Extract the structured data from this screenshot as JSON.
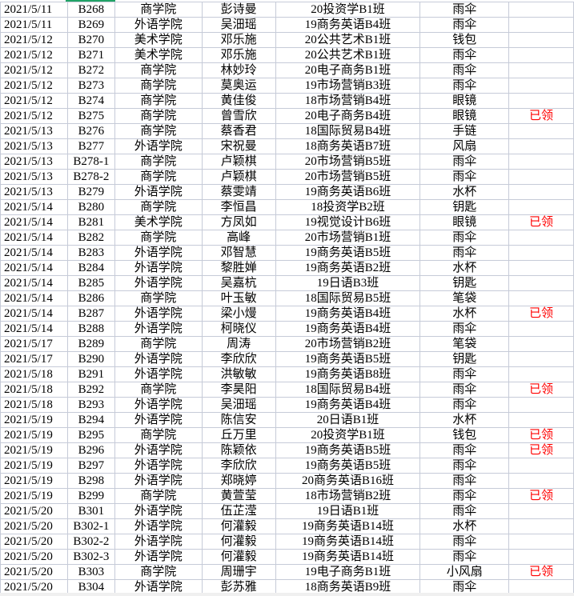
{
  "accent_color": "#21a366",
  "status_color": "#ff0000",
  "rows": [
    [
      "2021/5/11",
      "B268",
      "商学院",
      "彭诗曼",
      "20投资学B1班",
      "雨伞",
      ""
    ],
    [
      "2021/5/11",
      "B269",
      "外语学院",
      "吴沺瑶",
      "19商务英语B4班",
      "雨伞",
      ""
    ],
    [
      "2021/5/12",
      "B270",
      "美术学院",
      "邓乐施",
      "20公共艺术B1班",
      "钱包",
      ""
    ],
    [
      "2021/5/12",
      "B271",
      "美术学院",
      "邓乐施",
      "20公共艺术B1班",
      "雨伞",
      ""
    ],
    [
      "2021/5/12",
      "B272",
      "商学院",
      "林妙玲",
      "20电子商务B1班",
      "雨伞",
      ""
    ],
    [
      "2021/5/12",
      "B273",
      "商学院",
      "莫奥运",
      "19市场营销B3班",
      "雨伞",
      ""
    ],
    [
      "2021/5/12",
      "B274",
      "商学院",
      "黄佳俊",
      "18市场营销B4班",
      "眼镜",
      ""
    ],
    [
      "2021/5/12",
      "B275",
      "商学院",
      "曾雪欣",
      "20电子商务B4班",
      "眼镜",
      "已领"
    ],
    [
      "2021/5/13",
      "B276",
      "商学院",
      "蔡香君",
      "18国际贸易B4班",
      "手链",
      ""
    ],
    [
      "2021/5/13",
      "B277",
      "外语学院",
      "宋祝曼",
      "18商务英语B7班",
      "风扇",
      ""
    ],
    [
      "2021/5/13",
      "B278-1",
      "商学院",
      "卢颖棋",
      "20市场营销B5班",
      "雨伞",
      ""
    ],
    [
      "2021/5/13",
      "B278-2",
      "商学院",
      "卢颖棋",
      "20市场营销B5班",
      "雨伞",
      ""
    ],
    [
      "2021/5/13",
      "B279",
      "外语学院",
      "蔡雯靖",
      "19商务英语B6班",
      "水杯",
      ""
    ],
    [
      "2021/5/14",
      "B280",
      "商学院",
      "李恒昌",
      "18投资学B2班",
      "钥匙",
      ""
    ],
    [
      "2021/5/14",
      "B281",
      "美术学院",
      "方凤如",
      "19视觉设计B6班",
      "眼镜",
      "已领"
    ],
    [
      "2021/5/14",
      "B282",
      "商学院",
      "高峰",
      "20市场营销B1班",
      "雨伞",
      ""
    ],
    [
      "2021/5/14",
      "B283",
      "外语学院",
      "邓智慧",
      "19商务英语B5班",
      "雨伞",
      ""
    ],
    [
      "2021/5/14",
      "B284",
      "外语学院",
      "黎胜婵",
      "19商务英语B2班",
      "水杯",
      ""
    ],
    [
      "2021/5/14",
      "B285",
      "外语学院",
      "吴嘉杭",
      "19日语B3班",
      "钥匙",
      ""
    ],
    [
      "2021/5/14",
      "B286",
      "商学院",
      "叶玉敏",
      "18国际贸易B5班",
      "笔袋",
      ""
    ],
    [
      "2021/5/14",
      "B287",
      "外语学院",
      "梁小熳",
      "19商务英语B4班",
      "水杯",
      "已领"
    ],
    [
      "2021/5/14",
      "B288",
      "外语学院",
      "柯晓仪",
      "19商务英语B4班",
      "雨伞",
      ""
    ],
    [
      "2021/5/17",
      "B289",
      "商学院",
      "周涛",
      "20市场营销B2班",
      "笔袋",
      ""
    ],
    [
      "2021/5/17",
      "B290",
      "外语学院",
      "李欣欣",
      "19商务英语B5班",
      "钥匙",
      ""
    ],
    [
      "2021/5/18",
      "B291",
      "外语学院",
      "洪敏敏",
      "19商务英语B8班",
      "雨伞",
      ""
    ],
    [
      "2021/5/18",
      "B292",
      "商学院",
      "李昊阳",
      "18国际贸易B4班",
      "雨伞",
      "已领"
    ],
    [
      "2021/5/18",
      "B293",
      "外语学院",
      "吴沺瑶",
      "19商务英语B4班",
      "雨伞",
      ""
    ],
    [
      "2021/5/19",
      "B294",
      "外语学院",
      "陈信安",
      "20日语B1班",
      "水杯",
      ""
    ],
    [
      "2021/5/19",
      "B295",
      "商学院",
      "丘万里",
      "20投资学B1班",
      "钱包",
      "已领"
    ],
    [
      "2021/5/19",
      "B296",
      "外语学院",
      "陈颖依",
      "19商务英语B5班",
      "雨伞",
      "已领"
    ],
    [
      "2021/5/19",
      "B297",
      "外语学院",
      "李欣欣",
      "19商务英语B5班",
      "雨伞",
      ""
    ],
    [
      "2021/5/19",
      "B298",
      "外语学院",
      "郑晓婷",
      "20商务英语B16班",
      "雨伞",
      ""
    ],
    [
      "2021/5/19",
      "B299",
      "商学院",
      "黄萱莹",
      "18市场营销B2班",
      "雨伞",
      "已领"
    ],
    [
      "2021/5/20",
      "B301",
      "外语学院",
      "伍芷滢",
      "19日语B1班",
      "雨伞",
      ""
    ],
    [
      "2021/5/20",
      "B302-1",
      "外语学院",
      "何灌毅",
      "19商务英语B14班",
      "水杯",
      ""
    ],
    [
      "2021/5/20",
      "B302-2",
      "外语学院",
      "何灌毅",
      "19商务英语B14班",
      "雨伞",
      ""
    ],
    [
      "2021/5/20",
      "B302-3",
      "外语学院",
      "何灌毅",
      "19商务英语B14班",
      "雨伞",
      ""
    ],
    [
      "2021/5/20",
      "B303",
      "商学院",
      "周珊宇",
      "19电子商务B1班",
      "小风扇",
      "已领"
    ],
    [
      "2021/5/20",
      "B304",
      "外语学院",
      "彭苏雅",
      "18商务英语B9班",
      "雨伞",
      ""
    ]
  ]
}
